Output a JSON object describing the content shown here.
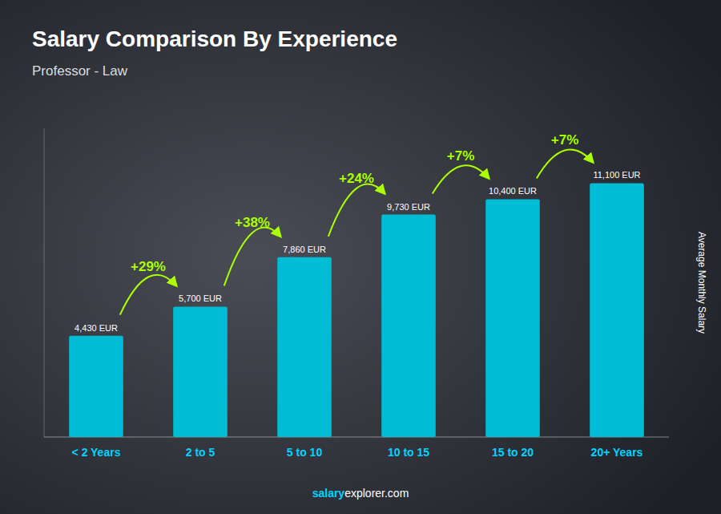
{
  "chart_data": {
    "type": "bar",
    "title": "Salary Comparison By Experience",
    "subtitle": "Professor - Law",
    "categories": [
      "< 2 Years",
      "2 to 5",
      "5 to 10",
      "10 to 15",
      "15 to 20",
      "20+ Years"
    ],
    "values": [
      4430,
      5700,
      7860,
      9730,
      10400,
      11100
    ],
    "value_labels": [
      "4,430 EUR",
      "5,700 EUR",
      "7,860 EUR",
      "9,730 EUR",
      "10,400 EUR",
      "11,100 EUR"
    ],
    "data_labels": true,
    "annotations": [
      "+29%",
      "+38%",
      "+24%",
      "+7%",
      "+7%"
    ],
    "ylabel": "Average Monthly Salary",
    "footer": [
      "salary",
      "explorer.com"
    ],
    "color": "#00bcd4",
    "ylim": [
      0,
      13500
    ],
    "tick_labels": "x",
    "grid": false
  }
}
